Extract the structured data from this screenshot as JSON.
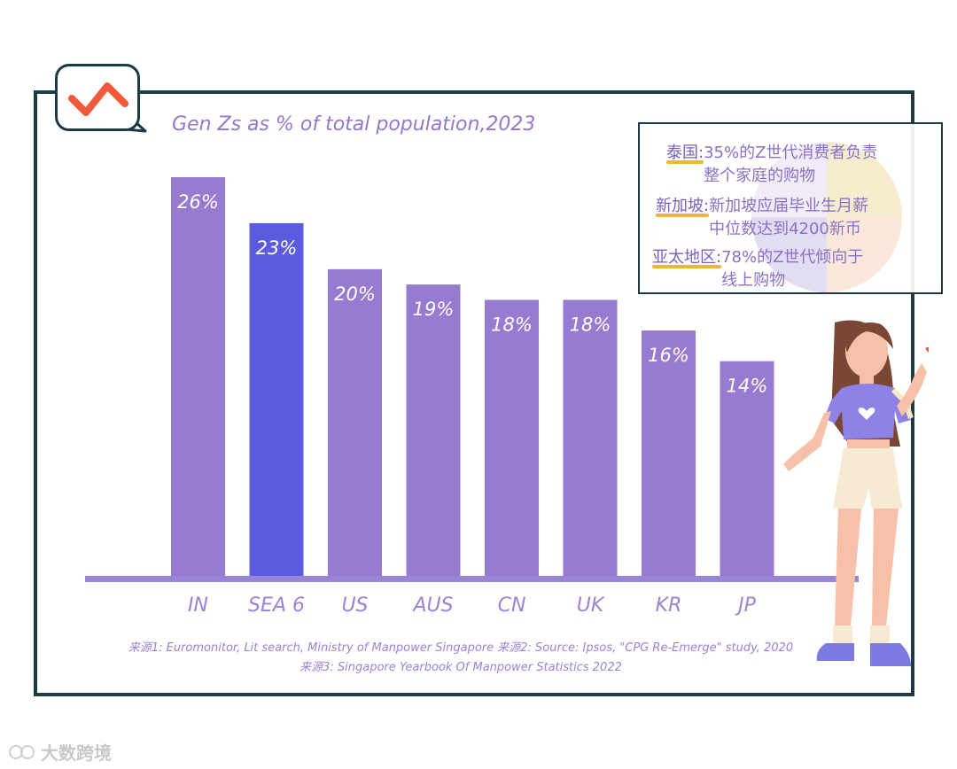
{
  "colors": {
    "bar": "#967bd0",
    "highlight_bar": "#5b5be0",
    "axis": "#9a84d6",
    "label": "#9a84d6",
    "frame": "#1d3a44",
    "accent": "#f05a3a"
  },
  "chart_data": {
    "type": "bar",
    "title": "Gen Zs as % of total population,2023",
    "categories": [
      "IN",
      "SEA 6",
      "US",
      "AUS",
      "CN",
      "UK",
      "KR",
      "JP"
    ],
    "values": [
      26,
      23,
      20,
      19,
      18,
      18,
      16,
      14
    ],
    "value_labels": [
      "26%",
      "23%",
      "20%",
      "19%",
      "18%",
      "18%",
      "16%",
      "14%"
    ],
    "highlight": "SEA 6",
    "xlabel": "",
    "ylabel": "",
    "ylim": [
      0,
      30
    ],
    "grid": false
  },
  "info_box": {
    "items": [
      {
        "key": "泰国:",
        "line1": "35%的Z世代消费者负责",
        "line2": "整个家庭的购物"
      },
      {
        "key": "新加坡:",
        "line1": "新加坡应届毕业生月薪",
        "line2": "中位数达到4200新币"
      },
      {
        "key": "亚太地区:",
        "line1": "78%的Z世代倾向于",
        "line2": "线上购物"
      }
    ]
  },
  "sources": {
    "line1": "来源1: Euromonitor, Lit search, Ministry of Manpower Singapore    来源2: Source: Ipsos, \"CPG Re-Emerge\" study, 2020",
    "line2": "来源3: Singapore Yearbook Of Manpower Statistics 2022"
  },
  "watermark": "大数跨境",
  "icons": [
    "chart-trend-icon",
    "heart-icon"
  ]
}
